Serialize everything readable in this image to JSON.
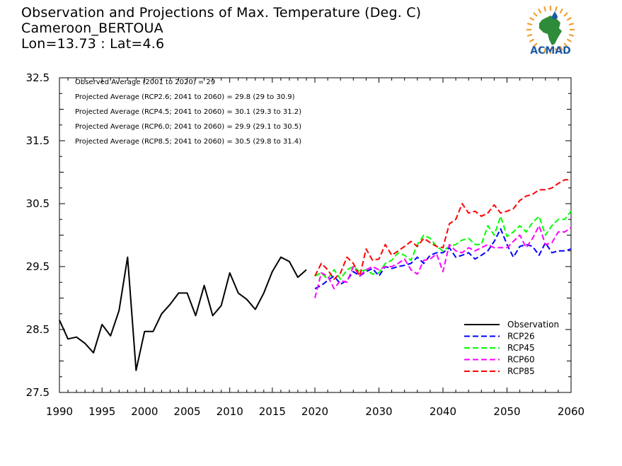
{
  "header": {
    "title": "Observation and Projections of Max. Temperature (Deg. C)",
    "location": "Cameroon_BERTOUA",
    "coords": "Lon=13.73 : Lat=4.6"
  },
  "logo": {
    "text": "ACMAD"
  },
  "colors": {
    "observation": "#000000",
    "rcp26": "#0000ff",
    "rcp45": "#00ff00",
    "rcp60": "#ff00ff",
    "rcp85": "#ff0000",
    "logo_blue": "#1a5aa8",
    "logo_green": "#2e8b3a",
    "logo_orange": "#f0a030"
  },
  "chart_data": {
    "type": "line",
    "annotations": [
      "Observed Average (2001 to 2020) = 29",
      "Projected Average (RCP2.6; 2041 to 2060) = 29.8 (29 to 30.9)",
      "Projected Average (RCP4.5; 2041 to 2060) = 30.1 (29.3 to 31.2)",
      "Projected Average (RCP6.0; 2041 to 2060) = 29.9 (29.1 to 30.5)",
      "Projected Average (RCP8.5; 2041 to 2060) = 30.5 (29.8 to 31.4)"
    ],
    "xlim": [
      1990,
      2060
    ],
    "ylim": [
      27.5,
      32.5
    ],
    "x_ticks": [
      "1990",
      "1995",
      "2000",
      "2005",
      "2010",
      "2015",
      "2020",
      "2030",
      "2040",
      "2050",
      "2060"
    ],
    "y_ticks": [
      "27.5",
      "28.5",
      "29.5",
      "30.5",
      "31.5",
      "32.5"
    ],
    "legend_position": "bottom-right",
    "series": [
      {
        "name": "Observation",
        "key": "observation",
        "style": "solid",
        "x": [
          1990,
          1991,
          1992,
          1993,
          1994,
          1995,
          1996,
          1997,
          1998,
          1999,
          2000,
          2001,
          2002,
          2003,
          2004,
          2005,
          2006,
          2007,
          2008,
          2009,
          2010,
          2011,
          2012,
          2013,
          2014,
          2015,
          2016,
          2017,
          2018,
          2019
        ],
        "y": [
          28.65,
          28.35,
          28.38,
          28.28,
          28.13,
          28.58,
          28.4,
          28.8,
          29.65,
          27.85,
          28.47,
          28.47,
          28.75,
          28.9,
          29.08,
          29.08,
          28.72,
          29.2,
          28.72,
          28.88,
          29.4,
          29.08,
          28.98,
          28.82,
          29.08,
          29.42,
          29.65,
          29.58,
          29.33,
          29.45
        ]
      },
      {
        "name": "RCP26",
        "key": "rcp26",
        "style": "dashed",
        "x": [
          2020,
          2021,
          2022,
          2023,
          2024,
          2025,
          2026,
          2027,
          2028,
          2029,
          2030,
          2031,
          2032,
          2033,
          2034,
          2035,
          2036,
          2037,
          2038,
          2039,
          2040,
          2041,
          2042,
          2043,
          2044,
          2045,
          2046,
          2047,
          2048,
          2049,
          2050,
          2051,
          2052,
          2053,
          2054,
          2055,
          2056,
          2057,
          2058,
          2059,
          2060
        ],
        "y": [
          29.15,
          29.2,
          29.28,
          29.35,
          29.22,
          29.28,
          29.42,
          29.35,
          29.42,
          29.47,
          29.35,
          29.5,
          29.47,
          29.5,
          29.52,
          29.55,
          29.65,
          29.55,
          29.68,
          29.72,
          29.72,
          29.8,
          29.65,
          29.68,
          29.72,
          29.62,
          29.68,
          29.75,
          29.9,
          30.1,
          29.85,
          29.65,
          29.82,
          29.85,
          29.82,
          29.68,
          29.88,
          29.72,
          29.75,
          29.75,
          29.78
        ]
      },
      {
        "name": "RCP45",
        "key": "rcp45",
        "style": "dashed",
        "x": [
          2020,
          2021,
          2022,
          2023,
          2024,
          2025,
          2026,
          2027,
          2028,
          2029,
          2030,
          2031,
          2032,
          2033,
          2034,
          2035,
          2036,
          2037,
          2038,
          2039,
          2040,
          2041,
          2042,
          2043,
          2044,
          2045,
          2046,
          2047,
          2048,
          2049,
          2050,
          2051,
          2052,
          2053,
          2054,
          2055,
          2056,
          2057,
          2058,
          2059,
          2060
        ],
        "y": [
          29.35,
          29.4,
          29.3,
          29.45,
          29.3,
          29.45,
          29.5,
          29.42,
          29.45,
          29.38,
          29.4,
          29.55,
          29.6,
          29.72,
          29.68,
          29.6,
          29.85,
          30.0,
          29.95,
          29.82,
          29.75,
          29.82,
          29.85,
          29.92,
          29.95,
          29.85,
          29.85,
          30.15,
          30.0,
          30.3,
          29.98,
          30.05,
          30.15,
          30.05,
          30.2,
          30.3,
          30.0,
          30.15,
          30.25,
          30.25,
          30.38
        ]
      },
      {
        "name": "RCP60",
        "key": "rcp60",
        "style": "dashed",
        "x": [
          2020,
          2021,
          2022,
          2023,
          2024,
          2025,
          2026,
          2027,
          2028,
          2029,
          2030,
          2031,
          2032,
          2033,
          2034,
          2035,
          2036,
          2037,
          2038,
          2039,
          2040,
          2041,
          2042,
          2043,
          2044,
          2045,
          2046,
          2047,
          2048,
          2049,
          2050,
          2051,
          2052,
          2053,
          2054,
          2055,
          2056,
          2057,
          2058,
          2059,
          2060
        ],
        "y": [
          29.0,
          29.4,
          29.35,
          29.15,
          29.28,
          29.25,
          29.5,
          29.35,
          29.45,
          29.5,
          29.45,
          29.5,
          29.5,
          29.55,
          29.62,
          29.45,
          29.38,
          29.6,
          29.62,
          29.7,
          29.42,
          29.85,
          29.75,
          29.72,
          29.8,
          29.75,
          29.8,
          29.85,
          29.8,
          29.8,
          29.8,
          29.9,
          30.0,
          29.8,
          29.95,
          30.15,
          29.85,
          29.88,
          30.05,
          30.05,
          30.12
        ]
      },
      {
        "name": "RCP85",
        "key": "rcp85",
        "style": "dashed",
        "x": [
          2020,
          2021,
          2022,
          2023,
          2024,
          2025,
          2026,
          2027,
          2028,
          2029,
          2030,
          2031,
          2032,
          2033,
          2034,
          2035,
          2036,
          2037,
          2038,
          2039,
          2040,
          2041,
          2042,
          2043,
          2044,
          2045,
          2046,
          2047,
          2048,
          2049,
          2050,
          2051,
          2052,
          2053,
          2054,
          2055,
          2056,
          2057,
          2058,
          2059,
          2060
        ],
        "y": [
          29.35,
          29.55,
          29.45,
          29.3,
          29.4,
          29.65,
          29.55,
          29.35,
          29.78,
          29.6,
          29.62,
          29.85,
          29.68,
          29.75,
          29.82,
          29.9,
          29.82,
          29.95,
          29.88,
          29.82,
          29.8,
          30.18,
          30.25,
          30.5,
          30.35,
          30.38,
          30.3,
          30.35,
          30.48,
          30.35,
          30.38,
          30.42,
          30.55,
          30.62,
          30.65,
          30.72,
          30.72,
          30.75,
          30.82,
          30.88,
          30.88
        ]
      }
    ]
  }
}
